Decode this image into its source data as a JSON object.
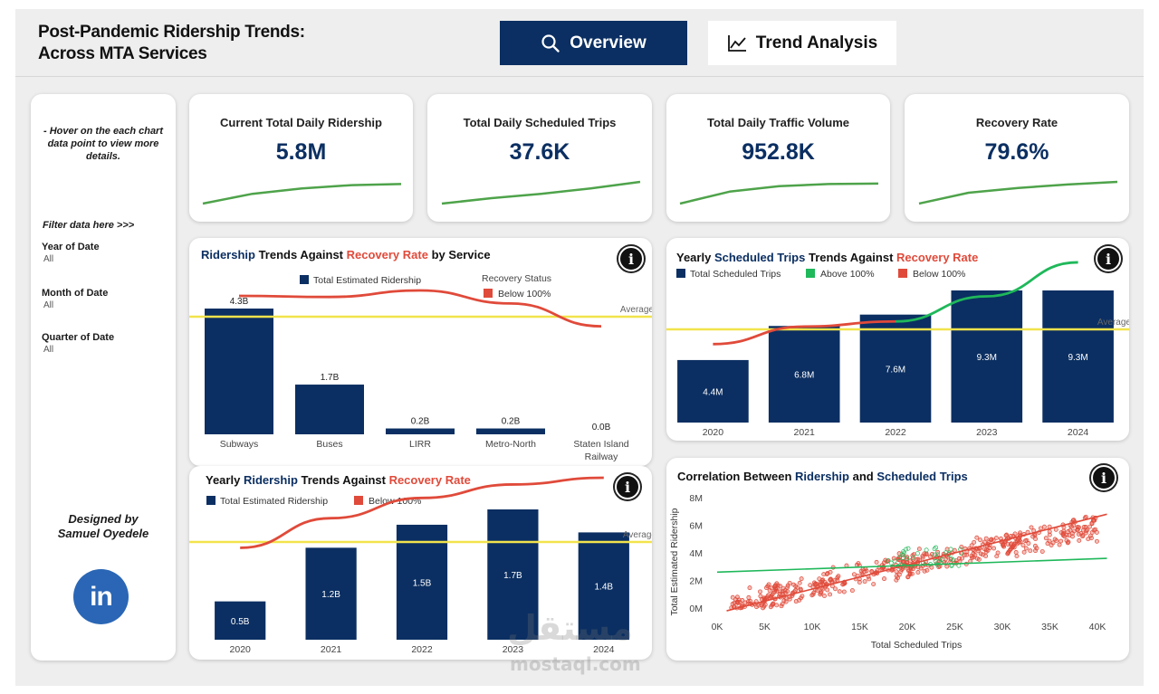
{
  "header": {
    "title_line1": "Post-Pandemic Ridership Trends:",
    "title_line2": "Across MTA Services",
    "nav": [
      {
        "label": "Overview",
        "icon": "search-icon"
      },
      {
        "label": "Trend Analysis",
        "icon": "line-chart-icon"
      }
    ]
  },
  "sidebar": {
    "hint": "- Hover on the each chart data point to view more details.",
    "filter_title": "Filter data here >>>",
    "filters": [
      {
        "label": "Year of Date",
        "value": "All"
      },
      {
        "label": "Month of Date",
        "value": "All"
      },
      {
        "label": "Quarter of Date",
        "value": "All"
      }
    ],
    "designed_line1": "Designed by",
    "designed_line2": "Samuel Oyedele",
    "linkedin_text": "in"
  },
  "kpis": [
    {
      "title": "Current Total Daily Ridership",
      "value": "5.8M",
      "spark": [
        0.0,
        0.45,
        0.7,
        0.85,
        0.9
      ]
    },
    {
      "title": "Total Daily Scheduled Trips",
      "value": "37.6K",
      "spark": [
        0.0,
        0.25,
        0.45,
        0.7,
        1.0
      ]
    },
    {
      "title": "Total Daily Traffic Volume",
      "value": "952.8K",
      "spark": [
        0.0,
        0.55,
        0.8,
        0.9,
        0.92
      ]
    },
    {
      "title": "Recovery Rate",
      "value": "79.6%",
      "spark": [
        0.0,
        0.5,
        0.72,
        0.88,
        1.0
      ]
    }
  ],
  "colors": {
    "navy": "#0b2f62",
    "red": "#e04a3a",
    "green": "#1fb85a",
    "yellow": "#f2e34c",
    "spark": "#4ea34a"
  },
  "chart_data": [
    {
      "type": "bar",
      "title_parts": [
        "Ridership",
        " Trends Against ",
        "Recovery Rate",
        " by Service"
      ],
      "categories": [
        "Subways",
        "Buses",
        "LIRR",
        "Metro-North",
        "Staten Island Railway"
      ],
      "series": [
        {
          "name": "Total Estimated Ridership",
          "values": [
            4.3,
            1.7,
            0.2,
            0.2,
            0.0
          ],
          "labels": [
            "4.3B",
            "1.7B",
            "0.2B",
            "0.2B",
            "0.0B"
          ]
        }
      ],
      "line_series": {
        "values": [
          0.8,
          0.79,
          0.85,
          0.73,
          0.52
        ]
      },
      "legend": {
        "bar": "Total Estimated Ridership",
        "status_title": "Recovery Status",
        "status": "Below 100%"
      },
      "reference_label": "Average"
    },
    {
      "type": "bar",
      "title_parts": [
        "Yearly ",
        "Scheduled Trips",
        " Trends Against ",
        "Recovery Rate"
      ],
      "categories": [
        "2020",
        "2021",
        "2022",
        "2023",
        "2024"
      ],
      "series": [
        {
          "name": "Total Scheduled Trips",
          "values": [
            4.4,
            6.8,
            7.6,
            9.3,
            9.3
          ],
          "labels": [
            "4.4M",
            "6.8M",
            "7.6M",
            "9.3M",
            "9.3M"
          ]
        }
      ],
      "line_series": {
        "values": [
          0.3,
          0.44,
          0.48,
          0.68,
          0.95
        ]
      },
      "legend": {
        "bar": "Total Scheduled Trips",
        "above": "Above 100%",
        "below": "Below 100%"
      },
      "reference_label": "Average"
    },
    {
      "type": "bar",
      "title_parts": [
        "Yearly ",
        "Ridership",
        " Trends Against ",
        "Recovery Rate"
      ],
      "categories": [
        "2020",
        "2021",
        "2022",
        "2023",
        "2024"
      ],
      "series": [
        {
          "name": "Total Estimated Ridership",
          "values": [
            0.5,
            1.2,
            1.5,
            1.7,
            1.4
          ],
          "labels": [
            "0.5B",
            "1.2B",
            "1.5B",
            "1.7B",
            "1.4B"
          ]
        }
      ],
      "line_series": {
        "values": [
          0.46,
          0.68,
          0.83,
          0.93,
          0.98
        ]
      },
      "legend": {
        "bar": "Total Estimated Ridership",
        "below": "Below 100%"
      },
      "reference_label": "Average"
    },
    {
      "type": "scatter",
      "title_parts": [
        "Correlation Between ",
        "Ridership",
        " and ",
        "Scheduled Trips"
      ],
      "xlabel": "Total Scheduled Trips",
      "ylabel": "Total Estimated Ridership",
      "x_ticks": [
        "0K",
        "5K",
        "10K",
        "15K",
        "20K",
        "25K",
        "30K",
        "35K",
        "40K"
      ],
      "y_ticks": [
        "0M",
        "2M",
        "4M",
        "6M",
        "8M"
      ],
      "xlim": [
        0,
        40000
      ],
      "ylim": [
        0,
        8
      ],
      "trend_red": {
        "x": [
          1000,
          41000
        ],
        "y": [
          -0.2,
          6.8
        ]
      },
      "trend_green": {
        "x": [
          0,
          41000
        ],
        "y": [
          2.6,
          3.6
        ]
      }
    }
  ],
  "watermark": {
    "arabic": "مستقل",
    "latin": "mostaql.com"
  }
}
